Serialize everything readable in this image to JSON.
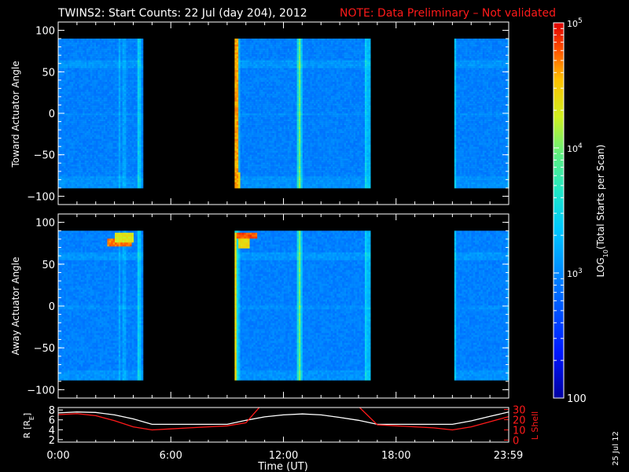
{
  "title": {
    "main": "TWINS2: Start Counts: 22 Jul (day 204), 2012",
    "note": "NOTE: Data Preliminary – Not validated",
    "note_color": "#ff1a1a"
  },
  "date_stamp": "25 Jul 12",
  "chart_data": [
    {
      "type": "heatmap",
      "ylabel": "Toward Actuator Angle",
      "ylim": [
        -110,
        110
      ],
      "yticks": [
        100,
        50,
        0,
        -50,
        -100
      ],
      "xlim_hours": [
        0,
        24
      ],
      "angle_range": [
        -88,
        90
      ],
      "data_segments_hours": [
        [
          0.0,
          4.45
        ],
        [
          9.4,
          16.6
        ],
        [
          21.1,
          23.98
        ]
      ],
      "baseline_log_counts": 3.0,
      "notes": "Mostly ~10^3 (cyan-blue). Bright yellow/green vertical stripes near 3.3h, 4.2h, 9.5h, 12.7h, 16.4h; red/orange streaks at start of segment near 9.5h. Horizontal brighter band near +60 deg."
    },
    {
      "type": "heatmap",
      "ylabel": "Away Actuator Angle",
      "ylim": [
        -110,
        110
      ],
      "yticks": [
        100,
        50,
        0,
        -50,
        -100
      ],
      "xlim_hours": [
        0,
        24
      ],
      "angle_range": [
        -88,
        90
      ],
      "data_segments_hours": [
        [
          0.0,
          4.45
        ],
        [
          9.4,
          16.6
        ],
        [
          21.1,
          23.98
        ]
      ],
      "baseline_log_counts": 3.0,
      "notes": "Red/orange hot spots near +80..+90 deg around 2.5-4h and 9.6-10.5h; bright yellow stripes at 4.2h, 9.5h, 12.7h, 16.4h."
    },
    {
      "type": "line",
      "ylabel_left": "R [R",
      "ylabel_left_sub": "E",
      "ylabel_left_close": "]",
      "ylabel_right": "L Shell",
      "y_left_ticks": [
        2,
        4,
        6,
        8
      ],
      "y_left_lim": [
        1.5,
        8.5
      ],
      "y_right_ticks": [
        0,
        10,
        20,
        30
      ],
      "y_right_lim": [
        -2,
        32
      ],
      "x_hours": [
        0,
        1,
        2,
        3,
        4,
        5,
        6,
        7,
        8,
        9,
        10,
        11,
        12,
        13,
        14,
        15,
        16,
        17,
        18,
        19,
        20,
        21,
        22,
        23,
        24
      ],
      "series": [
        {
          "name": "R",
          "color": "#ffffff",
          "axis": "left",
          "values": [
            7.4,
            7.6,
            7.5,
            7.0,
            6.2,
            5.1,
            5.1,
            5.1,
            5.1,
            5.1,
            5.9,
            6.6,
            7.0,
            7.2,
            7.0,
            6.5,
            5.9,
            5.1,
            5.1,
            5.1,
            5.1,
            5.1,
            5.8,
            6.7,
            7.6
          ]
        },
        {
          "name": "L Shell",
          "color": "#ff1a1a",
          "axis": "right",
          "values": [
            25,
            26,
            24,
            19,
            13,
            10,
            11,
            12,
            13,
            14,
            17,
            38,
            null,
            null,
            null,
            null,
            33,
            15,
            14,
            13,
            12,
            10,
            13,
            18,
            23
          ]
        }
      ],
      "xticks": [
        "0:00",
        "6:00",
        "12:00",
        "18:00",
        "23:59"
      ],
      "xtick_hours": [
        0,
        6,
        12,
        18,
        23.98
      ],
      "xlabel": "Time (UT)"
    }
  ],
  "colorbar": {
    "label": "LOG",
    "label_sub": "10",
    "label_rest": "(Total Starts per Scan)",
    "ticks": [
      {
        "base": "10",
        "exp": "5",
        "log": 5
      },
      {
        "base": "10",
        "exp": "4",
        "log": 4
      },
      {
        "base": "10",
        "exp": "3",
        "log": 3
      },
      {
        "base": "100",
        "exp": "",
        "log": 2
      }
    ],
    "range_log": [
      2,
      5
    ]
  }
}
